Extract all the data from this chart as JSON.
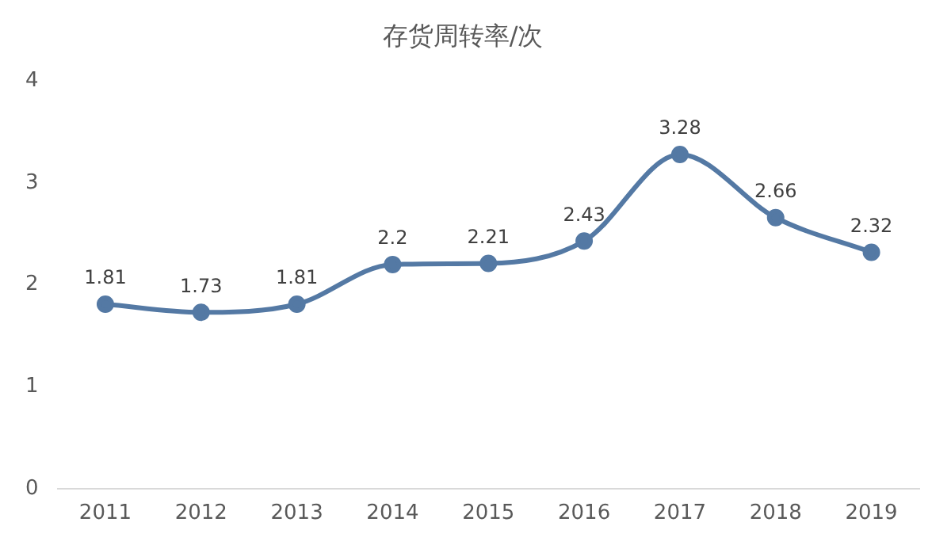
{
  "chart_data": {
    "type": "line",
    "title": "存货周转率/次",
    "categories": [
      "2011",
      "2012",
      "2013",
      "2014",
      "2015",
      "2016",
      "2017",
      "2018",
      "2019"
    ],
    "series": [
      {
        "color": "#5479a4",
        "values": [
          1.81,
          1.73,
          1.81,
          2.2,
          2.21,
          2.43,
          3.28,
          2.66,
          2.32
        ]
      }
    ],
    "ylim": [
      0,
      4
    ],
    "yticks": [
      0,
      1,
      2,
      3,
      4
    ],
    "grid": false,
    "legend": false,
    "marker": "circle",
    "line_style": "solid",
    "data_labels": true
  }
}
